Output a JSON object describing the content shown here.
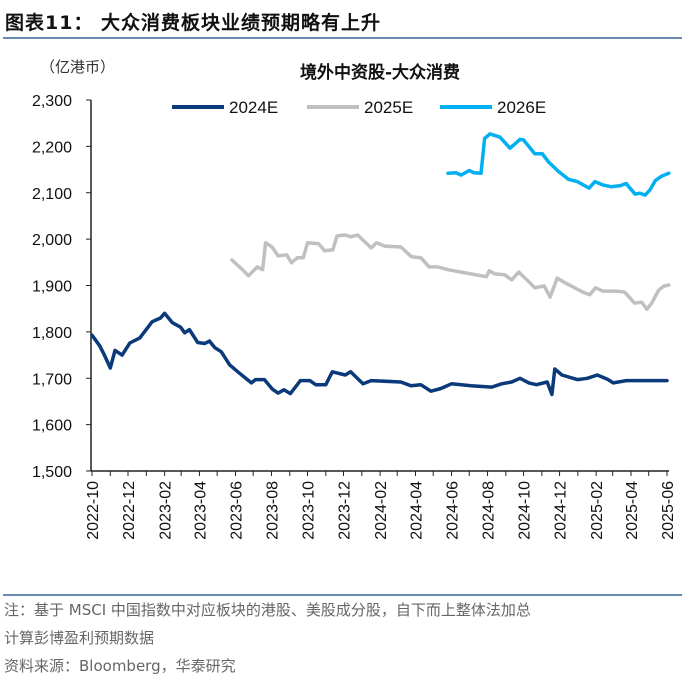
{
  "figure": {
    "title": "图表11： 大众消费板块业绩预期略有上升",
    "notes": [
      "注：基于 MSCI 中国指数中对应板块的港股、美股成分股，自下而上整体法加总",
      "计算彭博盈利预期数据",
      "资料来源：Bloomberg，华泰研究"
    ]
  },
  "chart_data": {
    "type": "line",
    "title": "境外中资股-大众消费",
    "ylabel": "（亿港币）",
    "xlabel": "",
    "ylim": [
      1500,
      2300
    ],
    "yticks": [
      "1,500",
      "1,600",
      "1,700",
      "1,800",
      "1,900",
      "2,000",
      "2,100",
      "2,200",
      "2,300"
    ],
    "xlim": [
      "2022-10-01",
      "2025-06-01"
    ],
    "xticks": [
      "2022-10",
      "2022-12",
      "2023-02",
      "2023-04",
      "2023-06",
      "2023-08",
      "2023-10",
      "2023-12",
      "2024-02",
      "2024-04",
      "2024-06",
      "2024-08",
      "2024-10",
      "2024-12",
      "2025-02",
      "2025-04",
      "2025-06"
    ],
    "grid": false,
    "legend": "top",
    "series": [
      {
        "name": "2024E",
        "color": "#0b3a7a",
        "points": [
          [
            "2022-10-01",
            1793
          ],
          [
            "2022-10-14",
            1770
          ],
          [
            "2022-10-22",
            1750
          ],
          [
            "2022-11-01",
            1722
          ],
          [
            "2022-11-09",
            1760
          ],
          [
            "2022-11-21",
            1750
          ],
          [
            "2022-12-04",
            1776
          ],
          [
            "2022-12-21",
            1787
          ],
          [
            "2023-01-11",
            1822
          ],
          [
            "2023-01-25",
            1830
          ],
          [
            "2023-02-01",
            1840
          ],
          [
            "2023-02-14",
            1820
          ],
          [
            "2023-02-28",
            1810
          ],
          [
            "2023-03-07",
            1798
          ],
          [
            "2023-03-15",
            1805
          ],
          [
            "2023-03-29",
            1777
          ],
          [
            "2023-04-10",
            1775
          ],
          [
            "2023-04-18",
            1780
          ],
          [
            "2023-04-27",
            1766
          ],
          [
            "2023-05-08",
            1757
          ],
          [
            "2023-05-22",
            1729
          ],
          [
            "2023-06-05",
            1714
          ],
          [
            "2023-06-28",
            1690
          ],
          [
            "2023-07-05",
            1697
          ],
          [
            "2023-07-20",
            1697
          ],
          [
            "2023-08-02",
            1677
          ],
          [
            "2023-08-12",
            1668
          ],
          [
            "2023-08-22",
            1675
          ],
          [
            "2023-09-02",
            1667
          ],
          [
            "2023-09-19",
            1695
          ],
          [
            "2023-10-05",
            1695
          ],
          [
            "2023-10-15",
            1686
          ],
          [
            "2023-11-01",
            1686
          ],
          [
            "2023-11-12",
            1714
          ],
          [
            "2023-12-04",
            1707
          ],
          [
            "2023-12-13",
            1714
          ],
          [
            "2024-01-03",
            1688
          ],
          [
            "2024-01-17",
            1695
          ],
          [
            "2024-03-07",
            1692
          ],
          [
            "2024-03-24",
            1684
          ],
          [
            "2024-04-10",
            1686
          ],
          [
            "2024-04-27",
            1672
          ],
          [
            "2024-05-14",
            1678
          ],
          [
            "2024-06-01",
            1688
          ],
          [
            "2024-07-04",
            1684
          ],
          [
            "2024-08-08",
            1681
          ],
          [
            "2024-08-25",
            1688
          ],
          [
            "2024-09-11",
            1692
          ],
          [
            "2024-09-25",
            1700
          ],
          [
            "2024-10-10",
            1690
          ],
          [
            "2024-10-23",
            1686
          ],
          [
            "2024-11-10",
            1692
          ],
          [
            "2024-11-18",
            1665
          ],
          [
            "2024-11-23",
            1720
          ],
          [
            "2024-12-05",
            1707
          ],
          [
            "2024-12-31",
            1697
          ],
          [
            "2025-01-17",
            1700
          ],
          [
            "2025-02-03",
            1707
          ],
          [
            "2025-02-20",
            1698
          ],
          [
            "2025-03-02",
            1690
          ],
          [
            "2025-03-24",
            1695
          ],
          [
            "2025-06-01",
            1695
          ]
        ]
      },
      {
        "name": "2025E",
        "color": "#c0c0c0",
        "points": [
          [
            "2023-05-26",
            1955
          ],
          [
            "2023-06-13",
            1934
          ],
          [
            "2023-06-23",
            1921
          ],
          [
            "2023-07-08",
            1940
          ],
          [
            "2023-07-17",
            1934
          ],
          [
            "2023-07-22",
            1992
          ],
          [
            "2023-08-02",
            1983
          ],
          [
            "2023-08-12",
            1964
          ],
          [
            "2023-08-27",
            1966
          ],
          [
            "2023-09-04",
            1949
          ],
          [
            "2023-09-14",
            1960
          ],
          [
            "2023-09-24",
            1960
          ],
          [
            "2023-10-01",
            1992
          ],
          [
            "2023-10-20",
            1990
          ],
          [
            "2023-10-30",
            1975
          ],
          [
            "2023-11-13",
            1977
          ],
          [
            "2023-11-20",
            2007
          ],
          [
            "2023-12-04",
            2009
          ],
          [
            "2023-12-13",
            2005
          ],
          [
            "2023-12-25",
            2009
          ],
          [
            "2024-01-17",
            1981
          ],
          [
            "2024-01-26",
            1992
          ],
          [
            "2024-02-09",
            1985
          ],
          [
            "2024-03-07",
            1983
          ],
          [
            "2024-03-25",
            1962
          ],
          [
            "2024-04-10",
            1960
          ],
          [
            "2024-04-24",
            1940
          ],
          [
            "2024-05-09",
            1940
          ],
          [
            "2024-05-26",
            1934
          ],
          [
            "2024-06-17",
            1929
          ],
          [
            "2024-07-04",
            1925
          ],
          [
            "2024-07-30",
            1919
          ],
          [
            "2024-08-04",
            1932
          ],
          [
            "2024-08-13",
            1925
          ],
          [
            "2024-08-30",
            1923
          ],
          [
            "2024-09-11",
            1912
          ],
          [
            "2024-09-23",
            1929
          ],
          [
            "2024-10-10",
            1908
          ],
          [
            "2024-10-20",
            1895
          ],
          [
            "2024-11-05",
            1899
          ],
          [
            "2024-11-15",
            1875
          ],
          [
            "2024-11-27",
            1916
          ],
          [
            "2024-12-10",
            1906
          ],
          [
            "2025-01-09",
            1886
          ],
          [
            "2025-01-21",
            1880
          ],
          [
            "2025-01-31",
            1895
          ],
          [
            "2025-02-12",
            1888
          ],
          [
            "2025-03-07",
            1888
          ],
          [
            "2025-03-21",
            1886
          ],
          [
            "2025-03-29",
            1875
          ],
          [
            "2025-04-07",
            1862
          ],
          [
            "2025-04-19",
            1864
          ],
          [
            "2025-04-28",
            1849
          ],
          [
            "2025-05-06",
            1862
          ],
          [
            "2025-05-18",
            1890
          ],
          [
            "2025-05-27",
            1899
          ],
          [
            "2025-06-04",
            1901
          ]
        ]
      },
      {
        "name": "2026E",
        "color": "#00b0f0",
        "points": [
          [
            "2024-05-26",
            2142
          ],
          [
            "2024-06-09",
            2143
          ],
          [
            "2024-06-17",
            2138
          ],
          [
            "2024-07-01",
            2148
          ],
          [
            "2024-07-09",
            2143
          ],
          [
            "2024-07-21",
            2142
          ],
          [
            "2024-07-27",
            2217
          ],
          [
            "2024-08-05",
            2227
          ],
          [
            "2024-08-22",
            2220
          ],
          [
            "2024-09-08",
            2196
          ],
          [
            "2024-09-25",
            2215
          ],
          [
            "2024-10-01",
            2214
          ],
          [
            "2024-10-20",
            2184
          ],
          [
            "2024-11-02",
            2184
          ],
          [
            "2024-11-12",
            2167
          ],
          [
            "2024-11-29",
            2146
          ],
          [
            "2024-12-16",
            2129
          ],
          [
            "2024-12-31",
            2124
          ],
          [
            "2025-01-20",
            2110
          ],
          [
            "2025-01-30",
            2124
          ],
          [
            "2025-02-12",
            2117
          ],
          [
            "2025-02-26",
            2113
          ],
          [
            "2025-03-13",
            2115
          ],
          [
            "2025-03-24",
            2120
          ],
          [
            "2025-03-27",
            2115
          ],
          [
            "2025-04-08",
            2097
          ],
          [
            "2025-04-16",
            2099
          ],
          [
            "2025-04-25",
            2095
          ],
          [
            "2025-05-03",
            2106
          ],
          [
            "2025-05-12",
            2126
          ],
          [
            "2025-05-23",
            2136
          ],
          [
            "2025-06-04",
            2142
          ]
        ]
      }
    ]
  }
}
